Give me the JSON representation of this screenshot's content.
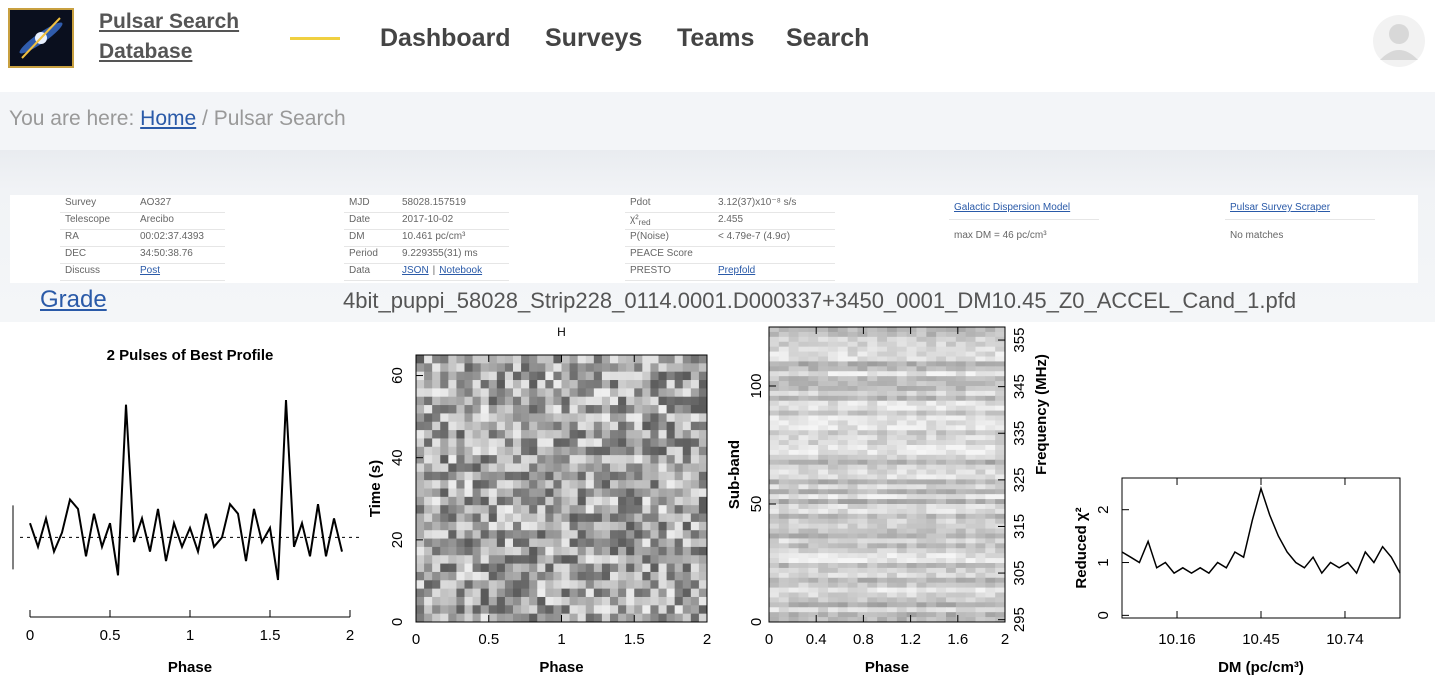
{
  "header": {
    "brand": [
      "Pulsar Search",
      "Database"
    ],
    "nav": [
      "Dashboard",
      "Surveys",
      "Teams",
      "Search"
    ]
  },
  "breadcrumb": {
    "prefix": "You are here:",
    "home": "Home",
    "separator": "/",
    "current": "Pulsar Search"
  },
  "info": {
    "columns": [
      [
        {
          "label": "Survey",
          "value": "AO327"
        },
        {
          "label": "Telescope",
          "value": "Arecibo"
        },
        {
          "label": "RA",
          "value": "00:02:37.4393"
        },
        {
          "label": "DEC",
          "value": "34:50:38.76"
        },
        {
          "label": "Discuss",
          "links": [
            "Post"
          ]
        }
      ],
      [
        {
          "label": "MJD",
          "value": "58028.157519"
        },
        {
          "label": "Date",
          "value": "2017-10-02"
        },
        {
          "label": "DM",
          "value": "10.461 pc/cm³"
        },
        {
          "label": "Period",
          "value": "9.229355(31) ms"
        },
        {
          "label": "Data",
          "links": [
            "JSON",
            "Notebook"
          ],
          "separator": "|"
        }
      ],
      [
        {
          "label": "Pdot",
          "value": "3.12(37)x10⁻⁸ s/s"
        },
        {
          "label": "χ²",
          "sub": "red",
          "value": "2.455"
        },
        {
          "label": "P(Noise)",
          "value": "< 4.79e-7 (4.9σ)"
        },
        {
          "label": "PEACE Score"
        },
        {
          "label": "PRESTO",
          "links": [
            "Prepfold"
          ]
        }
      ]
    ],
    "tools": [
      {
        "title": "Galactic Dispersion Model",
        "text": "max DM = 46 pc/cm³"
      },
      {
        "title": "Pulsar Survey Scraper",
        "text": "No matches"
      }
    ]
  },
  "grade": "Grade",
  "filename": "4bit_puppi_58028_Strip228_0114.0001.D000337+3450_0001_DM10.45_Z0_ACCEL_Cand_1.pfd",
  "plots": [
    {
      "type": "line",
      "title": "2 Pulses of Best Profile",
      "xlabel": "Phase",
      "xlim": [
        0,
        2
      ],
      "xticks": [
        0,
        0.5,
        1,
        1.5,
        2
      ],
      "x": [
        0,
        0.05,
        0.1,
        0.15,
        0.2,
        0.25,
        0.3,
        0.35,
        0.4,
        0.45,
        0.5,
        0.55,
        0.6,
        0.65,
        0.7,
        0.75,
        0.8,
        0.85,
        0.9,
        0.95,
        1,
        1.05,
        1.1,
        1.15,
        1.2,
        1.25,
        1.3,
        1.35,
        1.4,
        1.45,
        1.5,
        1.55,
        1.6,
        1.65,
        1.7,
        1.75,
        1.8,
        1.85,
        1.9,
        1.95
      ],
      "values": [
        0.3,
        -0.2,
        0.4,
        -0.3,
        0.1,
        0.8,
        0.6,
        -0.4,
        0.5,
        -0.2,
        0.3,
        -0.8,
        2.8,
        -0.1,
        0.4,
        -0.3,
        0.6,
        -0.5,
        0.3,
        -0.2,
        0.2,
        -0.3,
        0.5,
        -0.2,
        0.0,
        0.7,
        0.5,
        -0.5,
        0.6,
        -0.1,
        0.2,
        -0.9,
        2.9,
        -0.2,
        0.3,
        -0.4,
        0.7,
        -0.4,
        0.4,
        -0.3
      ]
    },
    {
      "type": "heatmap",
      "top_label": "H",
      "xlabel": "Phase",
      "ylabel": "Time (s)",
      "xlim": [
        0,
        2
      ],
      "xticks": [
        0,
        0.5,
        1,
        1.5,
        2
      ],
      "ylim": [
        0,
        65
      ],
      "yticks": [
        0,
        20,
        40,
        60
      ]
    },
    {
      "type": "heatmap",
      "xlabel": "Phase",
      "ylabel": "Sub-band",
      "y2label": "Frequency (MHz)",
      "xlim": [
        0,
        2
      ],
      "xticks": [
        0,
        0.4,
        0.8,
        1.2,
        1.6,
        2
      ],
      "ylim": [
        0,
        125
      ],
      "yticks": [
        0,
        50,
        100
      ],
      "y2lim": [
        294.5,
        357.8
      ],
      "y2ticks": [
        295,
        305,
        315,
        325,
        335,
        345,
        355
      ]
    },
    {
      "type": "line",
      "xlabel": "DM (pc/cm³)",
      "ylabel": "Reduced χ²",
      "xlim": [
        9.97,
        10.93
      ],
      "xticks": [
        10.16,
        10.45,
        10.74
      ],
      "ylim": [
        -0.05,
        2.6
      ],
      "yticks": [
        0,
        1,
        2
      ],
      "x": [
        9.97,
        10.0,
        10.03,
        10.06,
        10.09,
        10.12,
        10.15,
        10.18,
        10.21,
        10.24,
        10.27,
        10.3,
        10.33,
        10.36,
        10.39,
        10.42,
        10.45,
        10.48,
        10.51,
        10.54,
        10.57,
        10.6,
        10.63,
        10.66,
        10.69,
        10.72,
        10.75,
        10.78,
        10.81,
        10.84,
        10.87,
        10.9,
        10.93
      ],
      "values": [
        1.2,
        1.1,
        1.0,
        1.4,
        0.9,
        1.0,
        0.8,
        0.9,
        0.8,
        0.9,
        0.8,
        1.0,
        0.9,
        1.2,
        1.1,
        1.8,
        2.4,
        1.9,
        1.5,
        1.2,
        1.0,
        0.9,
        1.1,
        0.8,
        1.0,
        0.9,
        1.0,
        0.8,
        1.2,
        1.0,
        1.3,
        1.1,
        0.8
      ]
    }
  ]
}
